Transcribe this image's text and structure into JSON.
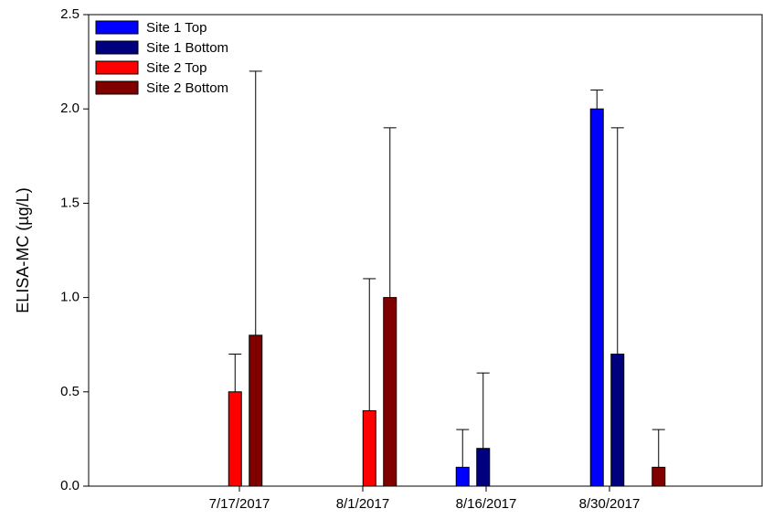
{
  "chart_data": {
    "type": "bar",
    "y_label": "ELISA-MC (µg/L)",
    "categories": [
      "7/17/2017",
      "8/1/2017",
      "8/16/2017",
      "8/30/2017"
    ],
    "series": [
      {
        "name": "Site 1 Top",
        "color": "#0000ff",
        "values": [
          null,
          null,
          0.1,
          2.0
        ],
        "errors": [
          null,
          null,
          0.2,
          0.1
        ]
      },
      {
        "name": "Site 1 Bottom",
        "color": "#00007f",
        "values": [
          null,
          null,
          0.2,
          0.7
        ],
        "errors": [
          null,
          null,
          0.4,
          1.2
        ]
      },
      {
        "name": "Site 2 Top",
        "color": "#ff0000",
        "values": [
          0.5,
          0.4,
          null,
          null
        ],
        "errors": [
          0.2,
          0.7,
          null,
          null
        ]
      },
      {
        "name": "Site 2 Bottom",
        "color": "#800000",
        "values": [
          0.8,
          1.0,
          null,
          0.1
        ],
        "errors": [
          1.4,
          0.9,
          null,
          0.2
        ]
      }
    ],
    "ylim": [
      0,
      2.5
    ],
    "yticks": [
      {
        "value": 0,
        "label": "0.0"
      },
      {
        "value": 0.5,
        "label": "0.5"
      },
      {
        "value": 1,
        "label": "1.0"
      },
      {
        "value": 1.5,
        "label": "1.5"
      },
      {
        "value": 2,
        "label": "2.0"
      },
      {
        "value": 2.5,
        "label": "2.5"
      }
    ],
    "legend": "top-left"
  }
}
